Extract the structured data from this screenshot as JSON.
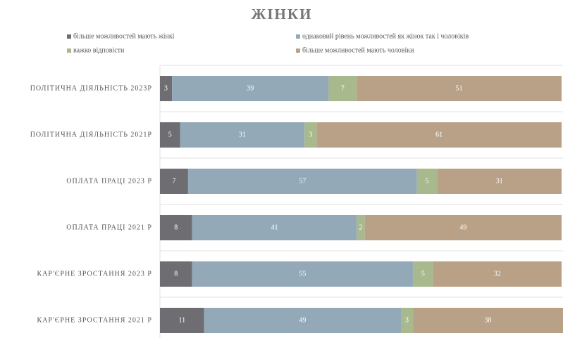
{
  "chart_data": {
    "type": "stacked_bar_horizontal",
    "title": "ЖІНКИ",
    "categories": [
      "ПОЛІТИЧНА ДІЯЛЬНІСТЬ 2023Р",
      "ПОЛІТИЧНА ДІЯЛЬНІСТЬ 2021Р",
      "ОПЛАТА ПРАЦІ 2023 Р",
      "ОПЛАТА ПРАЦІ 2021 Р",
      "КАР'ЄРНЕ ЗРОСТАННЯ 2023 Р",
      "КАР'ЄРНЕ ЗРОСТАННЯ 2021 Р"
    ],
    "series": [
      {
        "name": "більше можливостей мають жінкі",
        "color": "#6e6d72",
        "values": [
          3,
          5,
          7,
          8,
          8,
          11
        ]
      },
      {
        "name": "однаковий рівень можливостей як жінок так і чоловіків",
        "color": "#93a9b8",
        "values": [
          39,
          31,
          57,
          41,
          55,
          49
        ]
      },
      {
        "name": "важко відповісти",
        "color": "#a8b98e",
        "values": [
          7,
          3,
          5,
          2,
          5,
          3
        ]
      },
      {
        "name": "більше можливостей мають чоловіки",
        "color": "#b8a186",
        "values": [
          51,
          61,
          31,
          49,
          32,
          38
        ]
      }
    ],
    "xlim": [
      0,
      100
    ],
    "legend": "top"
  }
}
